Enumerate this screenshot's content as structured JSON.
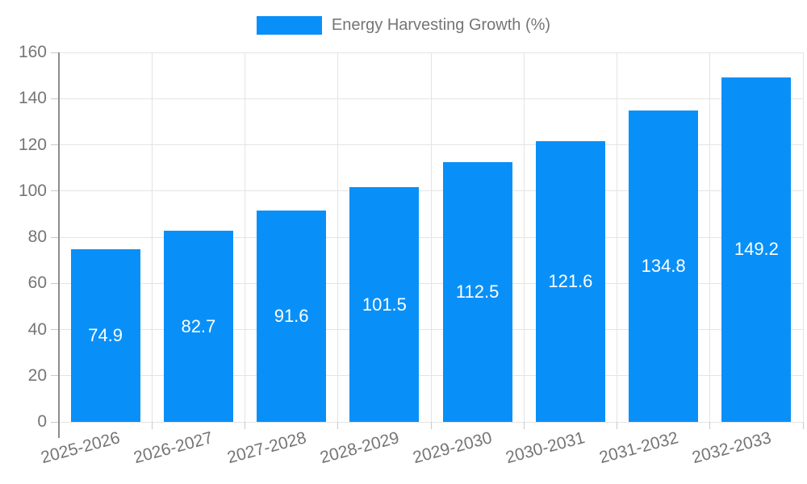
{
  "chart_data": {
    "type": "bar",
    "title": "Energy Harvesting Growth (%)",
    "categories": [
      "2025-2026",
      "2026-2027",
      "2027-2028",
      "2028-2029",
      "2029-2030",
      "2030-2031",
      "2031-2032",
      "2032-2033"
    ],
    "values": [
      74.9,
      82.7,
      91.6,
      101.5,
      112.5,
      121.6,
      134.8,
      149.2
    ],
    "value_labels": [
      "74.9",
      "82.7",
      "91.6",
      "101.5",
      "112.5",
      "121.6",
      "134.8",
      "149.2"
    ],
    "ytick_labels": [
      "0",
      "20",
      "40",
      "60",
      "80",
      "100",
      "120",
      "140",
      "160"
    ],
    "yticks": [
      0,
      20,
      40,
      60,
      80,
      100,
      120,
      140,
      160
    ],
    "ylim": [
      0,
      160
    ],
    "xlabel": "",
    "ylabel": "",
    "grid": true,
    "legend_position": "top",
    "x_label_rotation_deg": -15
  },
  "legend": {
    "label": "Energy Harvesting Growth (%)"
  },
  "colors": {
    "bar": "#0990f8",
    "value_label": "#ffffff",
    "grid": "#e4e4e4",
    "axis": "#8c8c8c",
    "tick": "#c9c9c9",
    "text": "#757575",
    "background": "#ffffff"
  }
}
